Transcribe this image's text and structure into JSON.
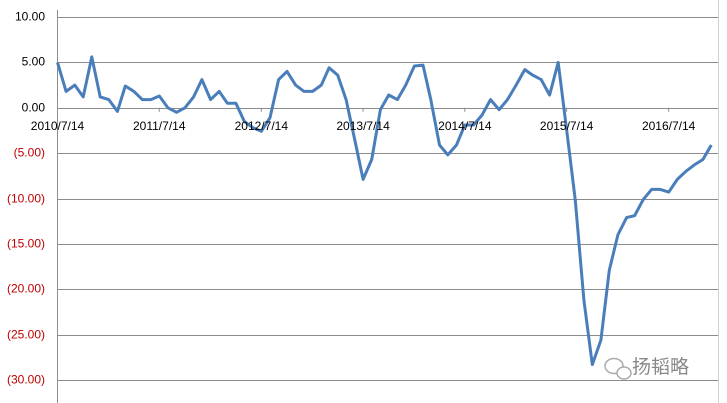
{
  "chart_data": {
    "type": "line",
    "x": [
      "2010/7/14",
      "2010/8/14",
      "2010/9/14",
      "2010/10/14",
      "2010/11/14",
      "2010/12/14",
      "2011/1/14",
      "2011/2/14",
      "2011/3/14",
      "2011/4/14",
      "2011/5/14",
      "2011/6/14",
      "2011/7/14",
      "2011/8/14",
      "2011/9/14",
      "2011/10/14",
      "2011/11/14",
      "2011/12/14",
      "2012/1/14",
      "2012/2/14",
      "2012/3/14",
      "2012/4/14",
      "2012/5/14",
      "2012/6/14",
      "2012/7/14",
      "2012/8/14",
      "2012/9/14",
      "2012/10/14",
      "2012/11/14",
      "2012/12/14",
      "2013/1/14",
      "2013/2/14",
      "2013/3/14",
      "2013/4/14",
      "2013/5/14",
      "2013/6/14",
      "2013/7/14",
      "2013/8/14",
      "2013/9/14",
      "2013/10/14",
      "2013/11/14",
      "2013/12/14",
      "2014/1/14",
      "2014/2/14",
      "2014/3/14",
      "2014/4/14",
      "2014/5/14",
      "2014/6/14",
      "2014/7/14",
      "2014/8/14",
      "2014/9/14",
      "2014/10/14",
      "2014/11/14",
      "2014/12/14",
      "2015/1/14",
      "2015/2/14",
      "2015/3/14",
      "2015/4/14",
      "2015/5/14",
      "2015/6/14",
      "2015/7/14",
      "2015/8/14",
      "2015/9/14",
      "2015/10/14",
      "2015/11/14",
      "2015/12/14",
      "2016/1/14",
      "2016/2/14",
      "2016/3/14",
      "2016/4/14",
      "2016/5/14",
      "2016/6/14",
      "2016/7/14",
      "2016/8/14",
      "2016/9/14",
      "2016/10/14",
      "2016/11/14",
      "2016/12/14"
    ],
    "series": [
      {
        "color": "#4a7ebb",
        "values": [
          5.0,
          1.8,
          2.5,
          1.2,
          5.6,
          1.2,
          0.9,
          -0.4,
          2.4,
          1.8,
          0.9,
          0.9,
          1.3,
          0,
          -0.5,
          0,
          1.2,
          3.1,
          0.9,
          1.8,
          0.5,
          0.5,
          -1.5,
          -2.2,
          -2.6,
          -1.1,
          3.1,
          4,
          2.5,
          1.8,
          1.8,
          2.5,
          4.4,
          3.6,
          0.9,
          -3.5,
          -7.9,
          -5.7,
          -0.2,
          1.4,
          0.9,
          2.5,
          4.6,
          4.7,
          0.9,
          -4.1,
          -5.2,
          -4.1,
          -1.9,
          -1.9,
          -0.8,
          0.9,
          -0.2,
          0.9,
          2.5,
          4.2,
          3.6,
          3.1,
          1.4,
          5.0,
          -2.4,
          -10.1,
          -21.2,
          -28.3,
          -25.6,
          -17.9,
          -14,
          -12.1,
          -11.9,
          -10.1,
          -9,
          -9,
          -9.3,
          -7.9,
          -7,
          -6.3,
          -5.7,
          -4.1
        ]
      }
    ],
    "xlim": [
      "2010/7/14",
      "2017/1/7"
    ],
    "xticks": [
      "2010/7/14",
      "2011/7/14",
      "2012/7/14",
      "2013/7/14",
      "2014/7/14",
      "2015/7/14",
      "2016/7/14"
    ],
    "ylim": [
      -30,
      10
    ],
    "yticks": [
      {
        "value": 10,
        "label": "10.00"
      },
      {
        "value": 5,
        "label": "5.00"
      },
      {
        "value": 0,
        "label": "0.00"
      },
      {
        "value": -5,
        "label": "(5.00)"
      },
      {
        "value": -10,
        "label": "(10.00)"
      },
      {
        "value": -15,
        "label": "(15.00)"
      },
      {
        "value": -20,
        "label": "(20.00)"
      },
      {
        "value": -25,
        "label": "(25.00)"
      },
      {
        "value": -30,
        "label": "(30.00)"
      }
    ],
    "negative_tick_color": "#c00000",
    "grid": true,
    "watermark": "扬韬略"
  }
}
